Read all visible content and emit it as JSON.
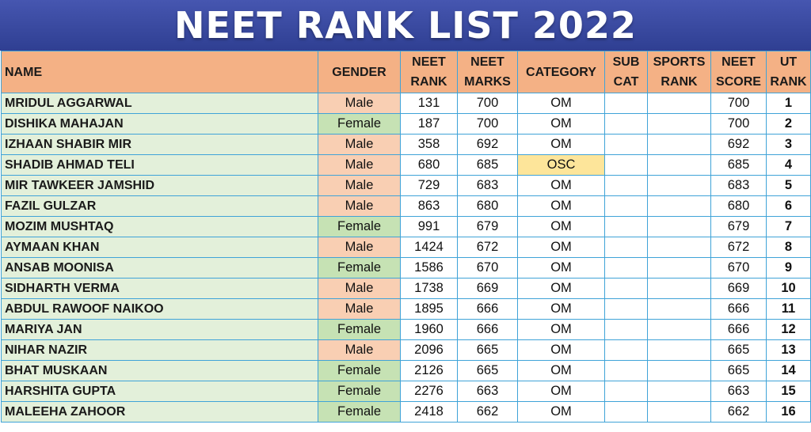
{
  "title": "NEET RANK LIST 2022",
  "table": {
    "headers": {
      "name": "NAME",
      "gender": "GENDER",
      "neet_rank": [
        "NEET",
        "RANK"
      ],
      "neet_marks": [
        "NEET",
        "MARKS"
      ],
      "category": "CATEGORY",
      "sub_cat": [
        "SUB",
        "CAT"
      ],
      "sports_rank": [
        "SPORTS",
        "RANK"
      ],
      "neet_score": [
        "NEET",
        "SCORE"
      ],
      "ut_rank": [
        "UT",
        "RANK"
      ]
    },
    "rows": [
      {
        "name": "MRIDUL AGGARWAL",
        "gender": "Male",
        "neet_rank": "131",
        "neet_marks": "700",
        "category": "OM",
        "sub_cat": "",
        "sports_rank": "",
        "neet_score": "700",
        "ut_rank": "1"
      },
      {
        "name": "DISHIKA MAHAJAN",
        "gender": "Female",
        "neet_rank": "187",
        "neet_marks": "700",
        "category": "OM",
        "sub_cat": "",
        "sports_rank": "",
        "neet_score": "700",
        "ut_rank": "2"
      },
      {
        "name": "IZHAAN SHABIR MIR",
        "gender": "Male",
        "neet_rank": "358",
        "neet_marks": "692",
        "category": "OM",
        "sub_cat": "",
        "sports_rank": "",
        "neet_score": "692",
        "ut_rank": "3"
      },
      {
        "name": "SHADIB AHMAD TELI",
        "gender": "Male",
        "neet_rank": "680",
        "neet_marks": "685",
        "category": "OSC",
        "sub_cat": "",
        "sports_rank": "",
        "neet_score": "685",
        "ut_rank": "4"
      },
      {
        "name": "MIR TAWKEER JAMSHID",
        "gender": "Male",
        "neet_rank": "729",
        "neet_marks": "683",
        "category": "OM",
        "sub_cat": "",
        "sports_rank": "",
        "neet_score": "683",
        "ut_rank": "5"
      },
      {
        "name": "FAZIL GULZAR",
        "gender": "Male",
        "neet_rank": "863",
        "neet_marks": "680",
        "category": "OM",
        "sub_cat": "",
        "sports_rank": "",
        "neet_score": "680",
        "ut_rank": "6"
      },
      {
        "name": "MOZIM MUSHTAQ",
        "gender": "Female",
        "neet_rank": "991",
        "neet_marks": "679",
        "category": "OM",
        "sub_cat": "",
        "sports_rank": "",
        "neet_score": "679",
        "ut_rank": "7"
      },
      {
        "name": "AYMAAN KHAN",
        "gender": "Male",
        "neet_rank": "1424",
        "neet_marks": "672",
        "category": "OM",
        "sub_cat": "",
        "sports_rank": "",
        "neet_score": "672",
        "ut_rank": "8"
      },
      {
        "name": "ANSAB MOONISA",
        "gender": "Female",
        "neet_rank": "1586",
        "neet_marks": "670",
        "category": "OM",
        "sub_cat": "",
        "sports_rank": "",
        "neet_score": "670",
        "ut_rank": "9"
      },
      {
        "name": "SIDHARTH VERMA",
        "gender": "Male",
        "neet_rank": "1738",
        "neet_marks": "669",
        "category": "OM",
        "sub_cat": "",
        "sports_rank": "",
        "neet_score": "669",
        "ut_rank": "10"
      },
      {
        "name": "ABDUL RAWOOF NAIKOO",
        "gender": "Male",
        "neet_rank": "1895",
        "neet_marks": "666",
        "category": "OM",
        "sub_cat": "",
        "sports_rank": "",
        "neet_score": "666",
        "ut_rank": "11"
      },
      {
        "name": "MARIYA JAN",
        "gender": "Female",
        "neet_rank": "1960",
        "neet_marks": "666",
        "category": "OM",
        "sub_cat": "",
        "sports_rank": "",
        "neet_score": "666",
        "ut_rank": "12"
      },
      {
        "name": "NIHAR NAZIR",
        "gender": "Male",
        "neet_rank": "2096",
        "neet_marks": "665",
        "category": "OM",
        "sub_cat": "",
        "sports_rank": "",
        "neet_score": "665",
        "ut_rank": "13"
      },
      {
        "name": "BHAT MUSKAAN",
        "gender": "Female",
        "neet_rank": "2126",
        "neet_marks": "665",
        "category": "OM",
        "sub_cat": "",
        "sports_rank": "",
        "neet_score": "665",
        "ut_rank": "14"
      },
      {
        "name": "HARSHITA GUPTA",
        "gender": "Female",
        "neet_rank": "2276",
        "neet_marks": "663",
        "category": "OM",
        "sub_cat": "",
        "sports_rank": "",
        "neet_score": "663",
        "ut_rank": "15"
      },
      {
        "name": "MALEEHA ZAHOOR",
        "gender": "Female",
        "neet_rank": "2418",
        "neet_marks": "662",
        "category": "OM",
        "sub_cat": "",
        "sports_rank": "",
        "neet_score": "662",
        "ut_rank": "16"
      }
    ]
  },
  "colors": {
    "header_bg": "#f4b185",
    "name_bg": "#e3f0da",
    "male_bg": "#f9cfb3",
    "female_bg": "#c6e2b4",
    "osc_bg": "#fde59a",
    "grid_line": "#3fa3d8",
    "banner_bg": "#3a4a9a"
  }
}
